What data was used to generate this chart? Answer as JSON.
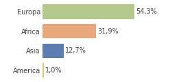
{
  "categories": [
    "America",
    "Asia",
    "Africa",
    "Europa"
  ],
  "values": [
    1.0,
    12.7,
    31.9,
    54.3
  ],
  "labels": [
    "1,0%",
    "12,7%",
    "31,9%",
    "54,3%"
  ],
  "bar_colors": [
    "#e8c96a",
    "#5b7db1",
    "#e8a87c",
    "#b5c98e"
  ],
  "background_color": "#ffffff",
  "figsize": [
    2.8,
    1.2
  ],
  "dpi": 100,
  "xlim": [
    0,
    68
  ]
}
